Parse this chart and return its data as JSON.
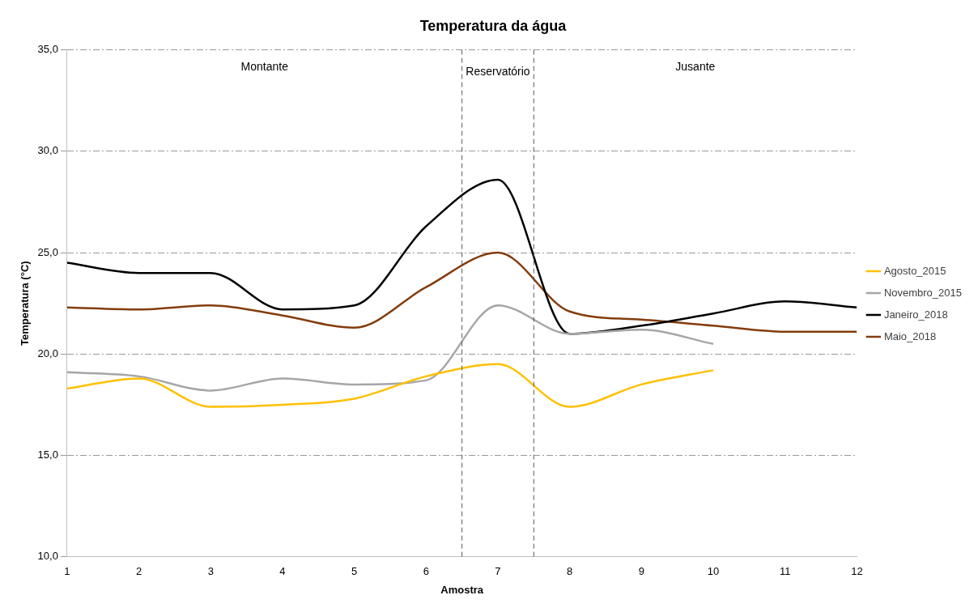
{
  "chart_data": {
    "type": "line",
    "title": "Temperatura da água",
    "xlabel": "Amostra",
    "ylabel": "Temperatura (°C)",
    "xlim": [
      1,
      12
    ],
    "xticks": [
      1,
      2,
      3,
      4,
      5,
      6,
      7,
      8,
      9,
      10,
      11,
      12
    ],
    "ylim": [
      10,
      35
    ],
    "yticks": [
      {
        "value": 10,
        "label": "10,0"
      },
      {
        "value": 15,
        "label": "15,0"
      },
      {
        "value": 20,
        "label": "20,0"
      },
      {
        "value": 25,
        "label": "25,0"
      },
      {
        "value": 30,
        "label": "30,0"
      },
      {
        "value": 35,
        "label": "35,0"
      }
    ],
    "grid": "y",
    "legend": "right",
    "marker": "none",
    "line_style": "solid",
    "series": [
      {
        "name": "Agosto_2015",
        "color": "#ffc000",
        "x": [
          1,
          2,
          3,
          4,
          5,
          6,
          7,
          8,
          9,
          10
        ],
        "values": [
          18.3,
          18.8,
          17.4,
          17.5,
          17.8,
          18.9,
          19.5,
          17.4,
          18.5,
          19.2
        ]
      },
      {
        "name": "Novembro_2015",
        "color": "#a6a6a6",
        "x": [
          1,
          2,
          3,
          4,
          5,
          6,
          7,
          8,
          9,
          10
        ],
        "values": [
          19.1,
          18.9,
          18.2,
          18.8,
          18.5,
          18.7,
          22.4,
          21.0,
          21.2,
          20.5
        ]
      },
      {
        "name": "Janeiro_2018",
        "color": "#000000",
        "x": [
          1,
          2,
          3,
          4,
          5,
          6,
          7,
          8,
          9,
          10,
          11,
          12
        ],
        "values": [
          24.5,
          24.0,
          24.0,
          22.2,
          22.4,
          26.3,
          28.6,
          21.0,
          21.4,
          22.0,
          22.6,
          22.3
        ]
      },
      {
        "name": "Maio_2018",
        "color": "#843c0c",
        "x": [
          1,
          2,
          3,
          4,
          5,
          6,
          7,
          8,
          9,
          10,
          11,
          12
        ],
        "values": [
          22.3,
          22.2,
          22.4,
          21.9,
          21.3,
          23.3,
          25.0,
          22.1,
          21.7,
          21.4,
          21.1,
          21.1
        ]
      }
    ],
    "ref_lines": [
      {
        "axis": "x",
        "value": 6.5,
        "color": "#595959",
        "line_style": "dashed"
      },
      {
        "axis": "x",
        "value": 7.5,
        "color": "#595959",
        "line_style": "dashed"
      }
    ],
    "annotations": [
      "Montante",
      "Reservatório",
      "Jusante"
    ]
  }
}
